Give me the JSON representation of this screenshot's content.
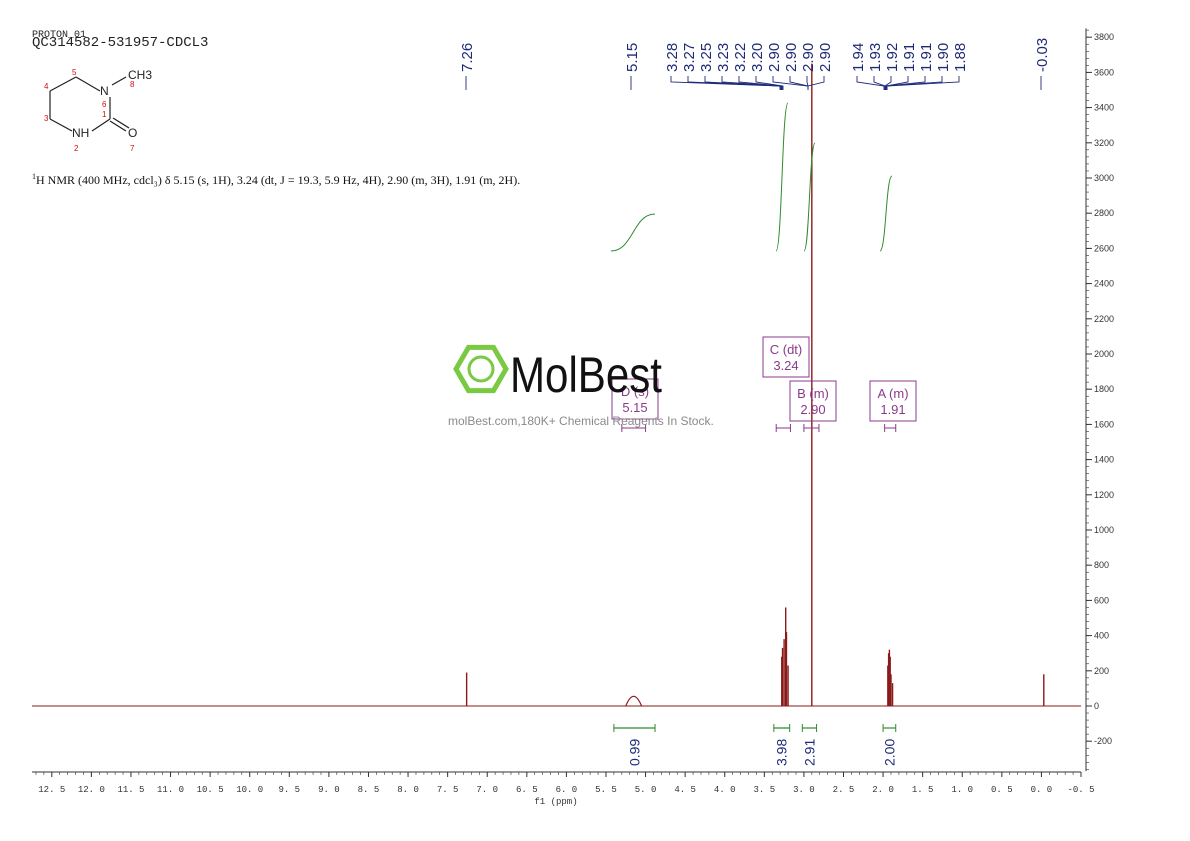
{
  "header": {
    "pulse_label": "PROTON_01",
    "sample_id": "QC314582-531957-CDCL3"
  },
  "summary": {
    "prefix": "1",
    "text": "H NMR (400 MHz, cdcl₃) δ 5.15 (s, 1H), 3.24 (dt, J = 19.3, 5.9 Hz, 4H), 2.90 (m, 3H), 1.91 (m, 2H)."
  },
  "structure": {
    "labels": [
      "CH3",
      "N",
      "NH",
      "O"
    ],
    "atom_numbers": [
      "1",
      "2",
      "3",
      "4",
      "5",
      "6",
      "7",
      "8"
    ]
  },
  "watermark": {
    "brand": "MolBest",
    "tagline": "molBest.com,180K+ Chemical Reagents In Stock."
  },
  "colors": {
    "spectrum": "#8b1a1a",
    "integral": "#2e8b2e",
    "peak_label": "#1e2a78",
    "multiplet": "#8b3a8b",
    "axis": "#333333",
    "watermark_logo": "#7ac943"
  },
  "chart_data": {
    "type": "line",
    "xlabel": "f1 (ppm)",
    "xlim": [
      12.75,
      -0.5
    ],
    "ylim": [
      -370,
      3850
    ],
    "x_ticks": [
      "12.5",
      "12.0",
      "11.5",
      "11.0",
      "10.5",
      "10.0",
      "9.5",
      "9.0",
      "8.5",
      "8.0",
      "7.5",
      "7.0",
      "6.5",
      "6.0",
      "5.5",
      "5.0",
      "4.5",
      "4.0",
      "3.5",
      "3.0",
      "2.5",
      "2.0",
      "1.5",
      "1.0",
      "0.5",
      "0.0",
      "-0.5"
    ],
    "y_ticks": [
      -200,
      0,
      200,
      400,
      600,
      800,
      1000,
      1200,
      1400,
      1600,
      1800,
      2000,
      2200,
      2400,
      2600,
      2800,
      3000,
      3200,
      3400,
      3600,
      3800
    ],
    "peaks": [
      {
        "ppm": 7.26,
        "height": 190
      },
      {
        "ppm": 5.15,
        "height": 55,
        "width": 0.05
      },
      {
        "ppm": 3.28,
        "height": 280
      },
      {
        "ppm": 3.27,
        "height": 330
      },
      {
        "ppm": 3.25,
        "height": 380
      },
      {
        "ppm": 3.23,
        "height": 560
      },
      {
        "ppm": 3.22,
        "height": 420
      },
      {
        "ppm": 3.2,
        "height": 230
      },
      {
        "ppm": 2.9,
        "height": 3650
      },
      {
        "ppm": 1.94,
        "height": 230
      },
      {
        "ppm": 1.93,
        "height": 300
      },
      {
        "ppm": 1.92,
        "height": 320
      },
      {
        "ppm": 1.91,
        "height": 280
      },
      {
        "ppm": 1.9,
        "height": 180
      },
      {
        "ppm": 1.88,
        "height": 130
      },
      {
        "ppm": -0.03,
        "height": 180
      }
    ],
    "peak_labels": [
      "7.26",
      "5.15",
      "3.28",
      "3.27",
      "3.25",
      "3.23",
      "3.22",
      "3.20",
      "2.90",
      "2.90",
      "2.90",
      "2.90",
      "1.94",
      "1.93",
      "1.92",
      "1.91",
      "1.91",
      "1.90",
      "1.88",
      "-0.03"
    ],
    "integrals": [
      {
        "from": 5.4,
        "to": 4.88,
        "value": "0.99"
      },
      {
        "from": 3.38,
        "to": 3.18,
        "value": "3.98"
      },
      {
        "from": 3.02,
        "to": 2.84,
        "value": "2.91"
      },
      {
        "from": 2.0,
        "to": 1.84,
        "value": "2.00"
      }
    ],
    "multiplets": [
      {
        "label": "D (s)",
        "shift": "5.15",
        "from": 5.3,
        "to": 5.0
      },
      {
        "label": "C (dt)",
        "shift": "3.24",
        "from": 3.35,
        "to": 3.17
      },
      {
        "label": "B (m)",
        "shift": "2.90",
        "from": 3.0,
        "to": 2.81
      },
      {
        "label": "A (m)",
        "shift": "1.91",
        "from": 1.98,
        "to": 1.84
      }
    ]
  }
}
